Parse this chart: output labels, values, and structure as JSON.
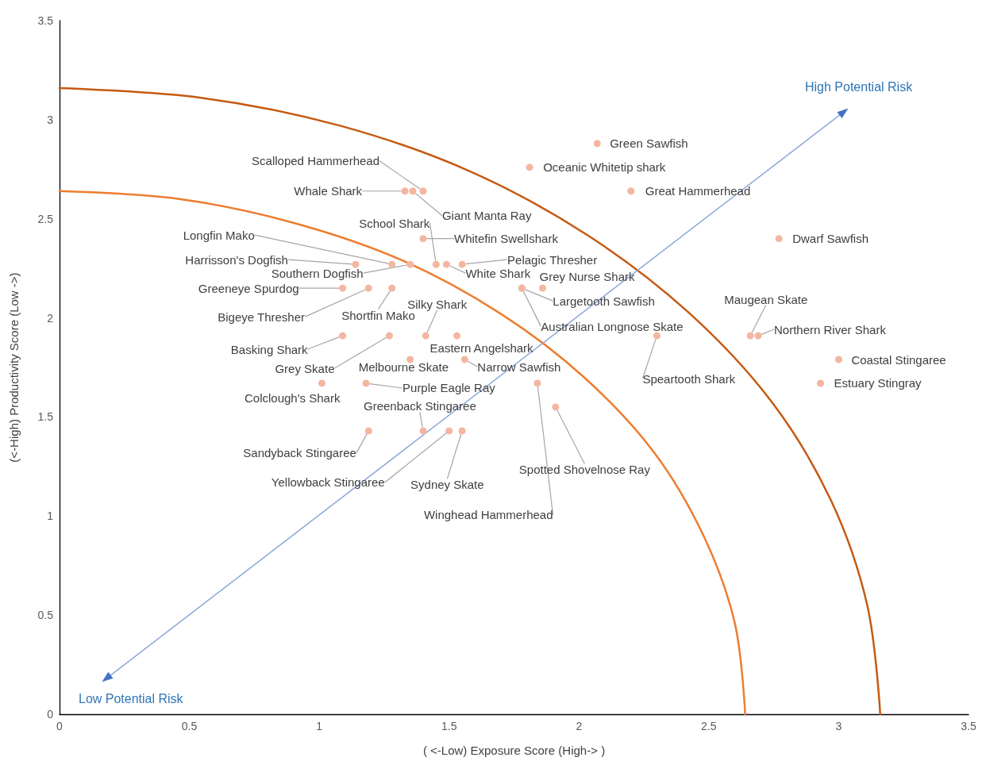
{
  "chart_data": {
    "type": "scatter",
    "xlabel": "( <-Low) Exposure Score (High-> )",
    "ylabel": "(<-High) Productivity Score (Low ->)",
    "xlim": [
      0,
      3.5
    ],
    "xticks": [
      0,
      0.5,
      1,
      1.5,
      2,
      2.5,
      3,
      3.5
    ],
    "ylim": [
      0,
      3.5
    ],
    "yticks": [
      0,
      0.5,
      1,
      1.5,
      2,
      2.5,
      3,
      3.5
    ],
    "grid": false,
    "annotations": [
      "Low Potential Risk",
      "High Potential Risk"
    ],
    "series": [
      {
        "type": "line",
        "marker": "none",
        "color": "#ed7d31",
        "x": [
          2.64,
          2.6,
          2.48,
          2.29,
          2.02,
          1.7,
          1.32,
          0.9,
          0.46,
          0
        ],
        "values": [
          0,
          0.46,
          0.9,
          1.32,
          1.7,
          2.02,
          2.29,
          2.48,
          2.6,
          2.64
        ]
      },
      {
        "type": "line",
        "marker": "none",
        "color": "#c55a11",
        "x": [
          3.16,
          3.11,
          2.97,
          2.74,
          2.42,
          2.03,
          1.58,
          1.08,
          0.55,
          0
        ],
        "values": [
          0,
          0.55,
          1.08,
          1.58,
          2.03,
          2.42,
          2.74,
          2.97,
          3.11,
          3.16
        ]
      },
      {
        "type": "line",
        "marker": "triangle",
        "color": "#8faadc",
        "x": [
          0.18,
          3.02
        ],
        "values": [
          0.18,
          3.04
        ]
      },
      {
        "marker": "circle",
        "color": "#f4b6a0",
        "x": [
          2.07,
          1.81,
          2.2,
          2.77,
          1.4,
          1.33,
          1.36,
          1.45,
          1.4,
          1.49,
          1.55,
          1.28,
          1.14,
          1.35,
          1.09,
          1.19,
          1.28,
          1.86,
          1.78,
          1.78,
          1.41,
          1.53,
          1.09,
          1.27,
          1.35,
          1.56,
          1.01,
          1.18,
          1.4,
          1.19,
          1.5,
          1.55,
          1.84,
          1.91,
          2.3,
          2.66,
          2.69,
          3.0,
          2.93
        ],
        "values": [
          2.88,
          2.76,
          2.64,
          2.4,
          2.64,
          2.64,
          2.64,
          2.27,
          2.4,
          2.27,
          2.27,
          2.27,
          2.27,
          2.27,
          2.15,
          2.15,
          2.15,
          2.15,
          2.15,
          2.15,
          1.91,
          1.91,
          1.91,
          1.91,
          1.79,
          1.79,
          1.67,
          1.67,
          1.43,
          1.43,
          1.43,
          1.43,
          1.67,
          1.55,
          1.91,
          1.91,
          1.91,
          1.79,
          1.67
        ],
        "value_labels": [
          "Green Sawfish",
          "Oceanic Whitetip shark",
          "Great Hammerhead",
          "Dwarf Sawfish",
          "Scalloped Hammerhead",
          "Whale Shark",
          "Giant Manta Ray",
          "School Shark",
          "Whitefin Swellshark",
          "White Shark",
          "Pelagic Thresher",
          "Longfin Mako",
          "Harrisson's Dogfish",
          "Southern Dogfish",
          "Greeneye Spurdog",
          "Bigeye Thresher",
          "Shortfin Mako",
          "Grey Nurse Shark",
          "Largetooth Sawfish",
          "Australian Longnose Skate",
          "Silky Shark",
          "Eastern Angelshark",
          "Basking Shark",
          "Grey Skate",
          "Melbourne Skate",
          "Narrow Sawfish",
          "Colclough's Shark",
          "Purple Eagle Ray",
          "Greenback Stingaree",
          "Sandyback Stingaree",
          "Yellowback Stingaree",
          "Sydney Skate",
          "Winghead Hammerhead",
          "Spotted Shovelnose Ray",
          "Speartooth Shark",
          "Maugean Skate",
          "Northern River Shark",
          "Coastal Stingaree",
          "Estuary Stingray"
        ]
      }
    ]
  }
}
